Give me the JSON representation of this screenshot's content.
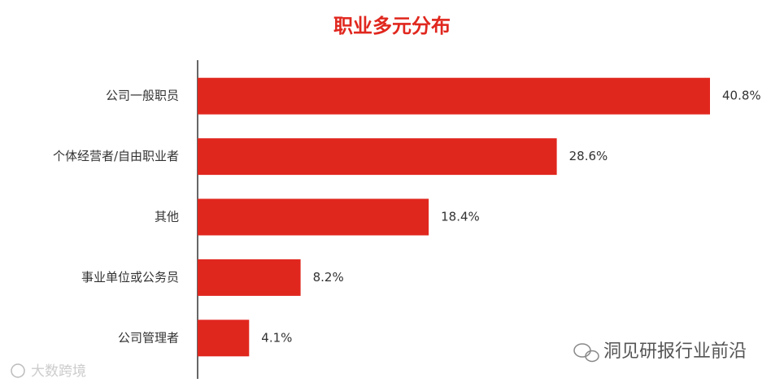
{
  "chart_data": {
    "type": "hbar",
    "title": "职业多元分布",
    "categories": [
      "公司一般职员",
      "个体经营者/自由职业者",
      "其他",
      "事业单位或公务员",
      "公司管理者"
    ],
    "values": [
      40.8,
      28.6,
      18.4,
      8.2,
      4.1
    ],
    "value_labels": [
      "40.8%",
      "28.6%",
      "18.4%",
      "8.2%",
      "4.1%"
    ],
    "color": "#e0271e",
    "annotations": [
      "洞见研报行业前沿",
      "大数跨境"
    ]
  }
}
